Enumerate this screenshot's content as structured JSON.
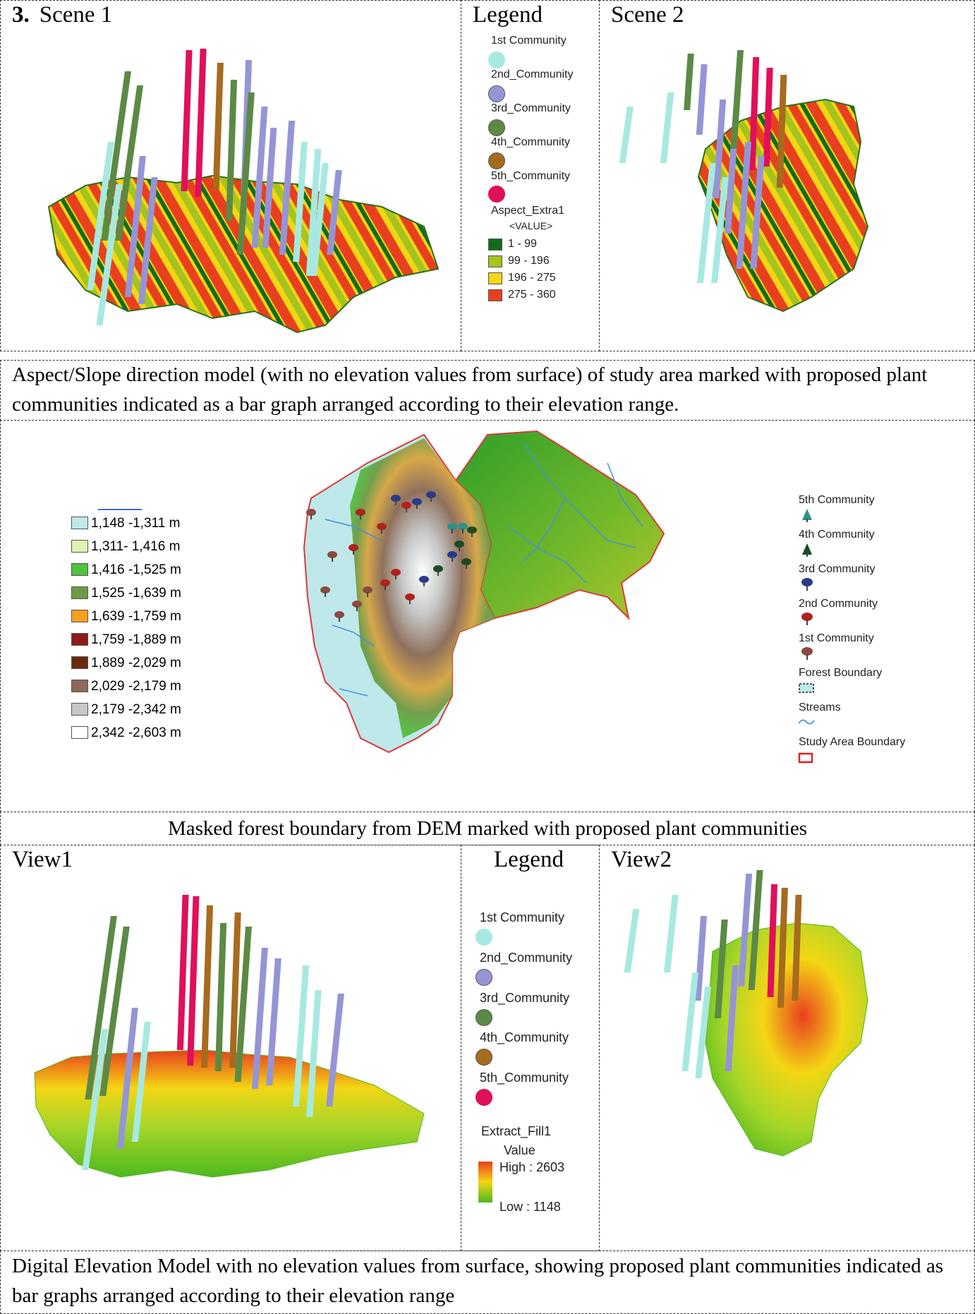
{
  "figure_number": "3.",
  "row1": {
    "scene1_title": "Scene 1",
    "legend_title": "Legend",
    "scene2_title": "Scene 2",
    "legend": {
      "communities": [
        {
          "label": "1st Community",
          "color": "#a7e9e0"
        },
        {
          "label": "2nd_Community",
          "color": "#9595d6"
        },
        {
          "label": "3rd_Community",
          "color": "#5c8a45"
        },
        {
          "label": "4th_Community",
          "color": "#a66b1f"
        },
        {
          "label": "5th_Community",
          "color": "#e0105a"
        }
      ],
      "raster_title": "Aspect_Extra1",
      "raster_subtitle": "<VALUE>",
      "classes": [
        {
          "label": "1 - 99",
          "color": "#136b1d"
        },
        {
          "label": "99 - 196",
          "color": "#a5c41d"
        },
        {
          "label": "196 - 275",
          "color": "#f3d614"
        },
        {
          "label": "275 - 360",
          "color": "#e8401e"
        }
      ]
    },
    "caption": "Aspect/Slope direction model (with no elevation values from surface) of study area marked with proposed plant communities indicated as a bar graph arranged according to their elevation range."
  },
  "row2": {
    "elevation_classes": [
      {
        "label": "1,148 -1,311 m",
        "color": "#bfe8ea"
      },
      {
        "label": "1,311- 1,416 m",
        "color": "#dff2b4"
      },
      {
        "label": "1,416 -1,525 m",
        "color": "#4fc23e"
      },
      {
        "label": "1,525 -1,639 m",
        "color": "#6f9a45"
      },
      {
        "label": "1,639 -1,759 m",
        "color": "#f5a11e"
      },
      {
        "label": "1,759 -1,889 m",
        "color": "#8e1b15"
      },
      {
        "label": "1,889 -2,029 m",
        "color": "#6a2a0d"
      },
      {
        "label": "2,029 -2,179 m",
        "color": "#8c6a56"
      },
      {
        "label": "2,179 -2,342 m",
        "color": "#c7c7c7"
      },
      {
        "label": "2,342 -2,603 m",
        "color": "#ffffff"
      }
    ],
    "symbol_legend": [
      {
        "label": "5th Community",
        "icon": "teal-conifer"
      },
      {
        "label": "4th Community",
        "icon": "dark-conifer"
      },
      {
        "label": "3rd Community",
        "icon": "blue-tree"
      },
      {
        "label": "2nd Community",
        "icon": "red-tree"
      },
      {
        "label": "1st Community",
        "icon": "brown-tree"
      },
      {
        "label": "Forest Boundary",
        "icon": "dashed-box"
      },
      {
        "label": "Streams",
        "icon": "wave-line"
      },
      {
        "label": "Study Area Boundary",
        "icon": "red-box"
      }
    ],
    "caption": "Masked forest boundary from DEM marked with proposed plant communities"
  },
  "row3": {
    "view1_title": "View1",
    "legend_title": "Legend",
    "view2_title": "View2",
    "legend": {
      "communities": [
        {
          "label": "1st Community",
          "color": "#a7e9e0"
        },
        {
          "label": "2nd_Community",
          "color": "#9595d6"
        },
        {
          "label": "3rd_Community",
          "color": "#5c8a45"
        },
        {
          "label": "4th_Community",
          "color": "#a66b1f"
        },
        {
          "label": "5th_Community",
          "color": "#e0105a"
        }
      ],
      "raster_title": "Extract_Fill1",
      "raster_subtitle": "Value",
      "high_label": "High : 2603",
      "low_label": "Low : 1148",
      "ramp_colors": [
        "#e8401e",
        "#f3d614",
        "#4fb81e"
      ]
    },
    "caption": "Digital Elevation Model with no elevation values from surface, showing proposed plant communities indicated as bar graphs arranged according to their elevation range"
  }
}
